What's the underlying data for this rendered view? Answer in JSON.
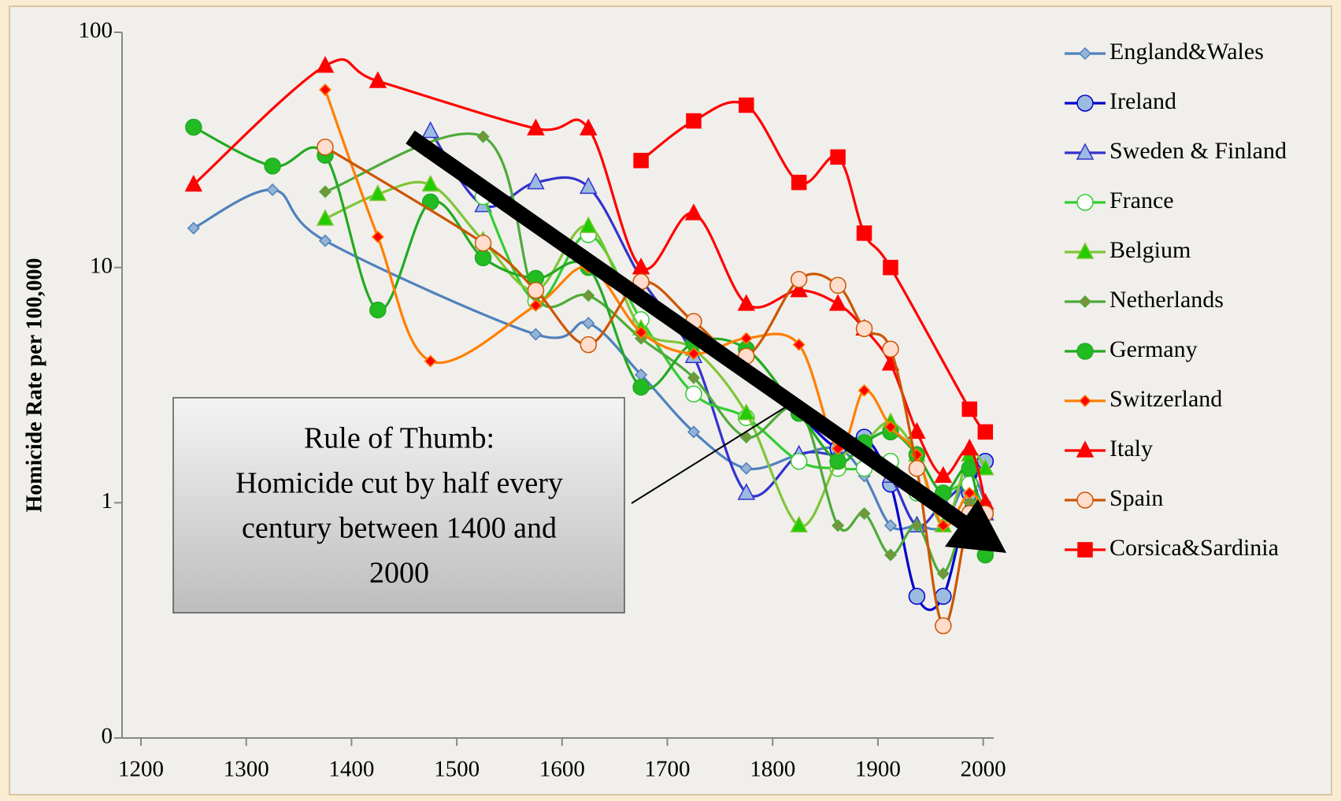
{
  "chart_data": {
    "type": "line",
    "y_label": "Homicide Rate per 100,000",
    "log_y": true,
    "ylim": [
      0.1,
      100
    ],
    "yticks": [
      {
        "value": 0.1,
        "label": "0"
      },
      1,
      10,
      100
    ],
    "xlim": [
      1200,
      2010
    ],
    "xticks": [
      1200,
      1300,
      1400,
      1500,
      1600,
      1700,
      1800,
      1900,
      2000
    ],
    "legend": "right",
    "annotation": [
      "Rule of Thumb:",
      "Homicide cut by half every",
      "century between 1400 and",
      "2000"
    ],
    "series": [
      {
        "name": "England&Wales",
        "color": "#4f81bd",
        "marker": "diamond",
        "marker_color": "#95b3d7",
        "x": [
          1250,
          1325,
          1375,
          1575,
          1625,
          1675,
          1725,
          1775,
          1825,
          1862,
          1887,
          1912,
          1937,
          1962,
          1987,
          2002
        ],
        "values": [
          14.7,
          21.4,
          13,
          5.2,
          5.8,
          3.5,
          2,
          1.4,
          1.6,
          1.7,
          1.3,
          0.8,
          0.8,
          0.8,
          1.3,
          1
        ]
      },
      {
        "name": "Ireland",
        "color": "#0000cc",
        "marker": "circle",
        "marker_color": "#9bbbe0",
        "x": [
          1825,
          1862,
          1887,
          1912,
          1937,
          1962,
          1987,
          2002
        ],
        "values": [
          2.4,
          1.7,
          1.9,
          1.2,
          0.4,
          0.4,
          1.1,
          1.5
        ]
      },
      {
        "name": "Sweden & Finland",
        "color": "#3333cc",
        "marker": "triangle",
        "marker_color": "#9bbbe0",
        "x": [
          1475,
          1525,
          1575,
          1625,
          1675,
          1725,
          1775,
          1825,
          1862,
          1887,
          1912,
          1937,
          1962,
          1987,
          2002
        ],
        "values": [
          38,
          18.4,
          23,
          22,
          9,
          4.2,
          1.1,
          1.6,
          1.6,
          1.7,
          1.3,
          0.8,
          1,
          1.2,
          0.9
        ]
      },
      {
        "name": "France",
        "color": "#33cc33",
        "marker": "circle",
        "marker_color": "#ffffff",
        "x": [
          1525,
          1575,
          1625,
          1675,
          1725,
          1775,
          1825,
          1862,
          1887,
          1912,
          1937,
          1962,
          1987,
          2002
        ],
        "values": [
          20,
          7.2,
          13.8,
          6,
          2.9,
          2.3,
          1.5,
          1.4,
          1.4,
          1.5,
          1.1,
          1.1,
          1.2,
          0.9
        ]
      },
      {
        "name": "Belgium",
        "color": "#7ec636",
        "marker": "triangle",
        "marker_color": "#22cc00",
        "x": [
          1375,
          1425,
          1475,
          1525,
          1575,
          1625,
          1675,
          1725,
          1775,
          1825,
          1862,
          1887,
          1912,
          1937,
          1962,
          1987,
          2002
        ],
        "values": [
          16.1,
          20.5,
          22.5,
          13,
          8,
          15,
          5.5,
          4.5,
          2.4,
          0.8,
          1.5,
          1.8,
          2.2,
          1.6,
          0.8,
          1.6,
          1.4
        ]
      },
      {
        "name": "Netherlands",
        "color": "#4eaa3a",
        "marker": "diamond",
        "marker_color": "#77933c",
        "x": [
          1375,
          1525,
          1575,
          1625,
          1675,
          1725,
          1775,
          1825,
          1862,
          1887,
          1912,
          1937,
          1962,
          1987,
          2002
        ],
        "values": [
          21,
          36,
          7.5,
          7.6,
          5,
          3.4,
          1.9,
          2.5,
          0.8,
          0.9,
          0.6,
          0.8,
          0.5,
          1,
          0.9
        ]
      },
      {
        "name": "Germany",
        "color": "#22aa22",
        "marker": "circle",
        "marker_color": "#22bb22",
        "x": [
          1250,
          1325,
          1375,
          1425,
          1475,
          1525,
          1575,
          1625,
          1675,
          1725,
          1775,
          1825,
          1862,
          1887,
          1912,
          1937,
          1962,
          1987,
          2002
        ],
        "values": [
          39.5,
          27,
          30,
          6.6,
          19,
          11,
          9,
          10,
          3.1,
          4.8,
          4.5,
          2.4,
          1.5,
          1.8,
          2,
          1.6,
          1.1,
          1.4,
          0.6
        ]
      },
      {
        "name": "Switzerland",
        "color": "#ff7f00",
        "marker": "diamond",
        "marker_color": "#ff0000",
        "x": [
          1375,
          1425,
          1475,
          1575,
          1625,
          1675,
          1725,
          1775,
          1825,
          1862,
          1887,
          1912,
          1937,
          1962,
          1987,
          2002
        ],
        "values": [
          57,
          13.5,
          4,
          6.9,
          10,
          5.3,
          4.3,
          5,
          4.7,
          1.7,
          3,
          2.1,
          1.6,
          0.8,
          1.1,
          0.9
        ]
      },
      {
        "name": "Italy",
        "color": "#ff0000",
        "marker": "triangle",
        "marker_color": "#ff0000",
        "x": [
          1250,
          1375,
          1425,
          1575,
          1625,
          1675,
          1725,
          1775,
          1825,
          1862,
          1887,
          1912,
          1937,
          1962,
          1987,
          2002
        ],
        "values": [
          22.5,
          72,
          62,
          39,
          39,
          10,
          17,
          7,
          8,
          7,
          5.5,
          3.9,
          2,
          1.3,
          1.7,
          1
        ]
      },
      {
        "name": "Spain",
        "color": "#cc5500",
        "marker": "circle",
        "marker_color": "#ffdccc",
        "x": [
          1375,
          1525,
          1575,
          1625,
          1675,
          1725,
          1775,
          1825,
          1862,
          1887,
          1912,
          1937,
          1962,
          1987,
          2002
        ],
        "values": [
          32.5,
          12.7,
          8,
          4.7,
          8.7,
          5.9,
          4.2,
          8.9,
          8.4,
          5.5,
          4.5,
          1.4,
          0.3,
          0.9,
          0.9
        ]
      },
      {
        "name": "Corsica&Sardinia",
        "color": "#ff0000",
        "marker": "square",
        "marker_color": "#ff0000",
        "x": [
          1675,
          1725,
          1775,
          1825,
          1862,
          1887,
          1912,
          1987,
          2002
        ],
        "values": [
          28.5,
          42,
          49,
          23,
          29.5,
          14,
          10,
          2.5,
          2
        ]
      }
    ]
  }
}
